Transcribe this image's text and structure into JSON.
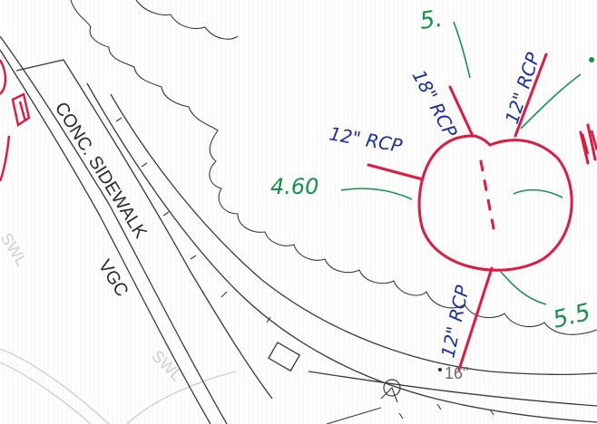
{
  "labels": {
    "sidewalk": "CONC. SIDEWALK",
    "vgc": "VGC",
    "swl_left": "SWL",
    "swl_bottom": "SWL",
    "pipe_nw": "18\" RCP",
    "pipe_n": "12\" RCP",
    "pipe_w": "12\" RCP",
    "pipe_s": "12\" RCP",
    "elev_w": "4.60",
    "elev_se": "5.5",
    "elev_top": "5.",
    "spot": "16\""
  },
  "colors": {
    "pencil": "#3a3a3a",
    "structure": "#e0193f",
    "pipe_label": "#1d2f9c",
    "elevation": "#15934a",
    "faint": "#c9c9c9"
  }
}
